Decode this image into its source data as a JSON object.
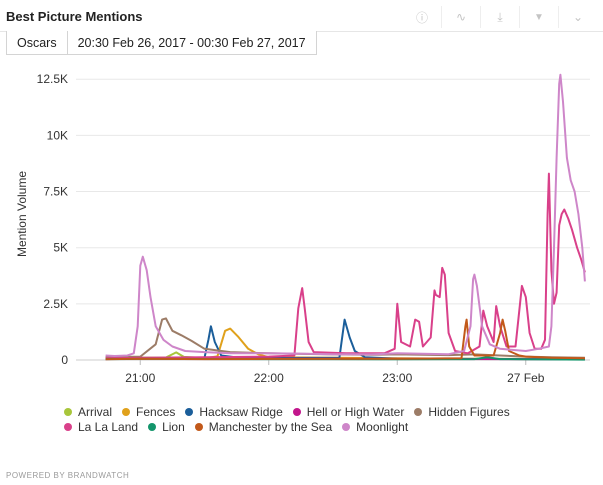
{
  "header": {
    "title": "Best Picture Mentions"
  },
  "toolbar": [
    {
      "name": "info-icon",
      "glyph": "ⓘ"
    },
    {
      "name": "trend-icon",
      "glyph": "∿"
    },
    {
      "name": "download-icon",
      "glyph": "⤓"
    },
    {
      "name": "filter-icon",
      "glyph": "▼"
    },
    {
      "name": "chevron-down-icon",
      "glyph": "⌄"
    }
  ],
  "tabs": {
    "query": "Oscars",
    "range": "20:30 Feb 26, 2017 - 00:30 Feb 27, 2017"
  },
  "footer": "POWERED BY BRANDWATCH",
  "chart_data": {
    "type": "line",
    "ylabel": "Mention Volume",
    "xlabel": "",
    "ylim": [
      0,
      13000
    ],
    "xlim": [
      20.5,
      24.5
    ],
    "x_ticks": [
      {
        "x": 21,
        "label": "21:00"
      },
      {
        "x": 22,
        "label": "22:00"
      },
      {
        "x": 23,
        "label": "23:00"
      },
      {
        "x": 24,
        "label": "27 Feb"
      }
    ],
    "y_ticks": [
      {
        "y": 0,
        "label": "0"
      },
      {
        "y": 2500,
        "label": "2.5K"
      },
      {
        "y": 5000,
        "label": "5K"
      },
      {
        "y": 7500,
        "label": "7.5K"
      },
      {
        "y": 10000,
        "label": "10K"
      },
      {
        "y": 12500,
        "label": "12.5K"
      }
    ],
    "grid": true,
    "legend_position": "bottom",
    "series": [
      {
        "name": "Arrival",
        "color": "#a8c63b",
        "points": [
          [
            20.73,
            100
          ],
          [
            21.2,
            110
          ],
          [
            21.28,
            340
          ],
          [
            21.34,
            140
          ],
          [
            21.5,
            90
          ],
          [
            22.0,
            80
          ],
          [
            23.0,
            60
          ],
          [
            24.0,
            40
          ],
          [
            24.46,
            50
          ]
        ]
      },
      {
        "name": "Fences",
        "color": "#e0a11c",
        "points": [
          [
            20.73,
            60
          ],
          [
            21.5,
            80
          ],
          [
            21.6,
            160
          ],
          [
            21.66,
            1300
          ],
          [
            21.7,
            1400
          ],
          [
            21.76,
            1050
          ],
          [
            21.84,
            500
          ],
          [
            21.92,
            250
          ],
          [
            22.0,
            120
          ],
          [
            23.0,
            80
          ],
          [
            23.5,
            60
          ],
          [
            24.0,
            50
          ],
          [
            24.46,
            40
          ]
        ]
      },
      {
        "name": "Hacksaw Ridge",
        "color": "#1b5e9a",
        "points": [
          [
            20.73,
            50
          ],
          [
            21.5,
            100
          ],
          [
            21.53,
            900
          ],
          [
            21.55,
            1500
          ],
          [
            21.58,
            800
          ],
          [
            21.63,
            200
          ],
          [
            21.8,
            80
          ],
          [
            22.55,
            100
          ],
          [
            22.59,
            1800
          ],
          [
            22.63,
            1000
          ],
          [
            22.67,
            400
          ],
          [
            22.75,
            120
          ],
          [
            23.0,
            60
          ],
          [
            24.0,
            40
          ],
          [
            24.46,
            30
          ]
        ]
      },
      {
        "name": "Hell or High Water",
        "color": "#c2168c",
        "points": [
          [
            20.73,
            40
          ],
          [
            21.0,
            70
          ],
          [
            21.55,
            50
          ],
          [
            22.0,
            60
          ],
          [
            23.0,
            50
          ],
          [
            24.0,
            40
          ],
          [
            24.46,
            30
          ]
        ]
      },
      {
        "name": "Hidden Figures",
        "color": "#9c7c67",
        "points": [
          [
            20.73,
            120
          ],
          [
            21.0,
            150
          ],
          [
            21.12,
            700
          ],
          [
            21.17,
            1800
          ],
          [
            21.2,
            1850
          ],
          [
            21.25,
            1300
          ],
          [
            21.32,
            1100
          ],
          [
            21.4,
            850
          ],
          [
            21.5,
            500
          ],
          [
            21.7,
            350
          ],
          [
            22.0,
            300
          ],
          [
            22.2,
            280
          ],
          [
            22.5,
            250
          ],
          [
            22.8,
            230
          ],
          [
            23.0,
            250
          ],
          [
            23.4,
            220
          ],
          [
            23.6,
            250
          ],
          [
            23.8,
            200
          ],
          [
            24.0,
            150
          ],
          [
            24.2,
            120
          ],
          [
            24.46,
            100
          ]
        ]
      },
      {
        "name": "La La Land",
        "color": "#d9408a",
        "points": [
          [
            20.73,
            80
          ],
          [
            21.0,
            100
          ],
          [
            21.5,
            120
          ],
          [
            22.0,
            150
          ],
          [
            22.2,
            200
          ],
          [
            22.23,
            2300
          ],
          [
            22.26,
            3200
          ],
          [
            22.28,
            2300
          ],
          [
            22.31,
            800
          ],
          [
            22.35,
            350
          ],
          [
            22.6,
            300
          ],
          [
            22.9,
            300
          ],
          [
            22.98,
            500
          ],
          [
            23.0,
            2500
          ],
          [
            23.03,
            800
          ],
          [
            23.1,
            600
          ],
          [
            23.14,
            1800
          ],
          [
            23.17,
            1700
          ],
          [
            23.2,
            600
          ],
          [
            23.26,
            1000
          ],
          [
            23.29,
            3100
          ],
          [
            23.3,
            2900
          ],
          [
            23.33,
            2800
          ],
          [
            23.35,
            4100
          ],
          [
            23.37,
            3800
          ],
          [
            23.4,
            1200
          ],
          [
            23.45,
            400
          ],
          [
            23.55,
            300
          ],
          [
            23.64,
            600
          ],
          [
            23.67,
            2200
          ],
          [
            23.7,
            1500
          ],
          [
            23.75,
            800
          ],
          [
            23.77,
            2400
          ],
          [
            23.8,
            1500
          ],
          [
            23.85,
            600
          ],
          [
            23.92,
            600
          ],
          [
            23.97,
            3300
          ],
          [
            24.0,
            2800
          ],
          [
            24.03,
            1200
          ],
          [
            24.07,
            500
          ],
          [
            24.12,
            500
          ],
          [
            24.15,
            900
          ],
          [
            24.17,
            6500
          ],
          [
            24.18,
            8300
          ],
          [
            24.2,
            4000
          ],
          [
            24.22,
            2500
          ],
          [
            24.24,
            3000
          ],
          [
            24.26,
            6000
          ],
          [
            24.28,
            6500
          ],
          [
            24.3,
            6700
          ],
          [
            24.33,
            6300
          ],
          [
            24.36,
            5800
          ],
          [
            24.4,
            5000
          ],
          [
            24.43,
            4500
          ],
          [
            24.46,
            3900
          ]
        ]
      },
      {
        "name": "Lion",
        "color": "#13956b",
        "points": [
          [
            20.73,
            40
          ],
          [
            21.0,
            50
          ],
          [
            22.0,
            40
          ],
          [
            22.5,
            40
          ],
          [
            23.0,
            30
          ],
          [
            23.6,
            40
          ],
          [
            23.7,
            120
          ],
          [
            23.8,
            40
          ],
          [
            24.0,
            30
          ],
          [
            24.46,
            20
          ]
        ]
      },
      {
        "name": "Manchester by the Sea",
        "color": "#c2591a",
        "points": [
          [
            20.73,
            30
          ],
          [
            21.0,
            60
          ],
          [
            21.5,
            40
          ],
          [
            22.0,
            50
          ],
          [
            23.0,
            60
          ],
          [
            23.5,
            80
          ],
          [
            23.53,
            1500
          ],
          [
            23.54,
            1800
          ],
          [
            23.56,
            600
          ],
          [
            23.6,
            200
          ],
          [
            23.75,
            200
          ],
          [
            23.8,
            1200
          ],
          [
            23.82,
            1800
          ],
          [
            23.84,
            1300
          ],
          [
            23.87,
            400
          ],
          [
            23.95,
            200
          ],
          [
            24.0,
            150
          ],
          [
            24.2,
            100
          ],
          [
            24.46,
            80
          ]
        ]
      },
      {
        "name": "Moonlight",
        "color": "#ce86c9",
        "points": [
          [
            20.73,
            200
          ],
          [
            20.8,
            180
          ],
          [
            20.9,
            200
          ],
          [
            20.95,
            300
          ],
          [
            20.98,
            1500
          ],
          [
            21.0,
            4200
          ],
          [
            21.02,
            4600
          ],
          [
            21.05,
            4000
          ],
          [
            21.08,
            2800
          ],
          [
            21.12,
            1500
          ],
          [
            21.18,
            900
          ],
          [
            21.25,
            600
          ],
          [
            21.35,
            400
          ],
          [
            21.5,
            350
          ],
          [
            21.7,
            300
          ],
          [
            22.0,
            300
          ],
          [
            22.3,
            280
          ],
          [
            22.5,
            260
          ],
          [
            22.8,
            250
          ],
          [
            23.0,
            300
          ],
          [
            23.2,
            280
          ],
          [
            23.4,
            260
          ],
          [
            23.52,
            400
          ],
          [
            23.57,
            1500
          ],
          [
            23.59,
            3600
          ],
          [
            23.6,
            3800
          ],
          [
            23.62,
            3300
          ],
          [
            23.66,
            1500
          ],
          [
            23.72,
            700
          ],
          [
            23.8,
            500
          ],
          [
            24.0,
            400
          ],
          [
            24.1,
            500
          ],
          [
            24.18,
            600
          ],
          [
            24.2,
            1500
          ],
          [
            24.22,
            5000
          ],
          [
            24.24,
            9000
          ],
          [
            24.26,
            12300
          ],
          [
            24.27,
            12700
          ],
          [
            24.29,
            11500
          ],
          [
            24.32,
            9000
          ],
          [
            24.35,
            8000
          ],
          [
            24.38,
            7500
          ],
          [
            24.41,
            6500
          ],
          [
            24.44,
            5000
          ],
          [
            24.46,
            3500
          ]
        ]
      }
    ]
  }
}
